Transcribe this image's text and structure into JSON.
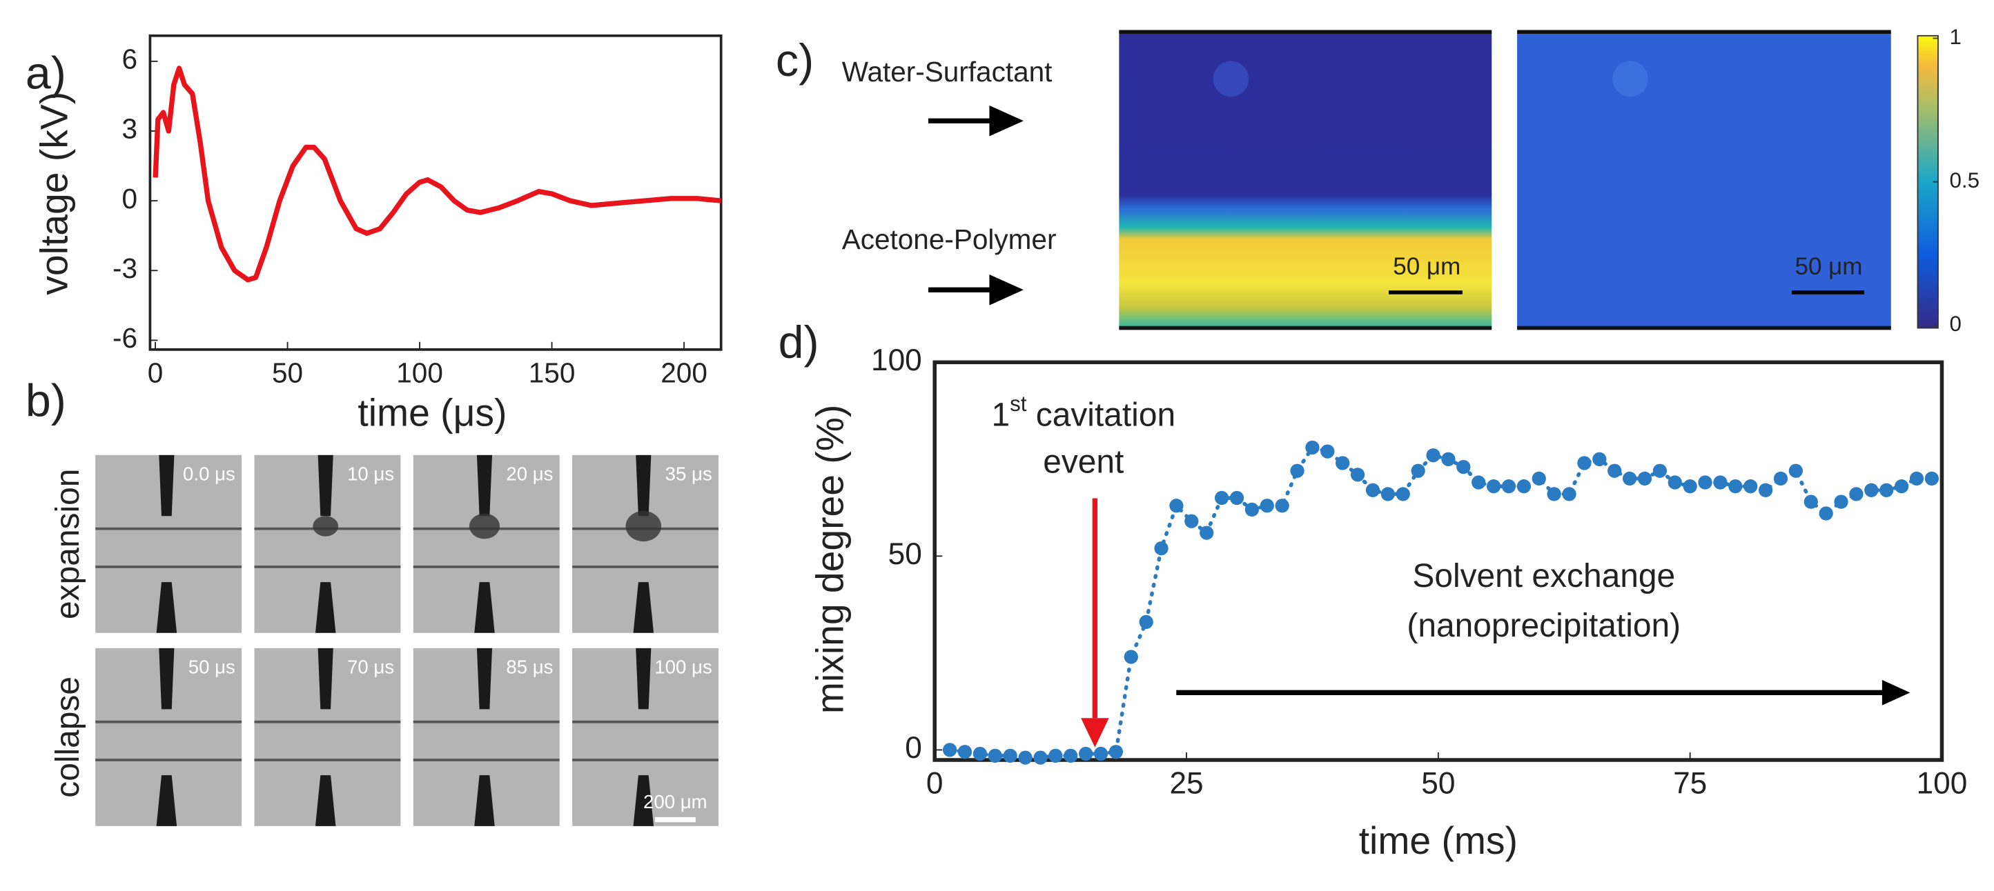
{
  "chart_data": [
    {
      "type": "line",
      "label": "a)",
      "xlabel": "time (μs)",
      "ylabel": "voltage (kV)",
      "color": "#e8141c",
      "x": [
        0,
        1,
        3,
        5,
        7,
        9,
        11,
        14,
        17,
        20,
        25,
        30,
        35,
        38,
        42,
        47,
        52,
        57,
        60,
        64,
        70,
        76,
        80,
        85,
        90,
        95,
        100,
        103,
        108,
        113,
        118,
        123,
        130,
        137,
        145,
        150,
        157,
        165,
        175,
        185,
        195,
        205,
        214
      ],
      "values": [
        1,
        3.5,
        3.8,
        3,
        5,
        5.7,
        5,
        4.6,
        2.5,
        0,
        -2,
        -3,
        -3.4,
        -3.3,
        -2,
        0,
        1.5,
        2.3,
        2.3,
        1.8,
        0,
        -1.2,
        -1.4,
        -1.2,
        -0.5,
        0.3,
        0.8,
        0.9,
        0.6,
        0,
        -0.4,
        -0.5,
        -0.3,
        0,
        0.4,
        0.3,
        0,
        -0.2,
        -0.1,
        0,
        0.1,
        0.1,
        0
      ],
      "xlim": [
        -2,
        214
      ],
      "xticks": [
        0,
        50,
        100,
        150,
        200
      ],
      "ylim": [
        -6.4,
        7.1
      ],
      "yticks": [
        -6,
        -3,
        0,
        3,
        6
      ]
    },
    {
      "type": "scatter",
      "label": "d)",
      "xlabel": "time (ms)",
      "ylabel": "mixing degree (%)",
      "color": "#2a7bc1",
      "x": [
        1.5,
        3,
        4.5,
        6,
        7.5,
        9,
        10.5,
        12,
        13.5,
        15,
        16.5,
        18,
        19.5,
        21,
        22.5,
        24,
        25.5,
        27,
        28.5,
        30,
        31.5,
        33,
        34.5,
        36,
        37.5,
        39,
        40.5,
        42,
        43.5,
        45,
        46.5,
        48,
        49.5,
        51,
        52.5,
        54,
        55.5,
        57,
        58.5,
        60,
        61.5,
        63,
        64.5,
        66,
        67.5,
        69,
        70.5,
        72,
        73.5,
        75,
        76.5,
        78,
        79.5,
        81,
        82.5,
        84,
        85.5,
        87,
        88.5,
        90,
        91.5,
        93,
        94.5,
        96,
        97.5,
        99
      ],
      "values": [
        0,
        -0.5,
        -1,
        -1.5,
        -1.5,
        -2,
        -2,
        -1.5,
        -1.5,
        -1,
        -1,
        -0.5,
        24,
        33,
        52,
        63,
        59,
        56,
        65,
        65,
        62,
        63,
        63,
        72,
        78,
        77,
        74,
        71,
        67,
        66,
        66,
        72,
        76,
        75,
        73,
        69,
        68,
        68,
        68,
        70,
        66,
        66,
        74,
        75,
        72,
        70,
        70,
        72,
        69,
        68,
        69,
        69,
        68,
        68,
        67,
        70,
        72,
        64,
        61,
        64,
        66,
        67,
        67,
        68,
        70,
        70
      ],
      "xlim": [
        0,
        100
      ],
      "xticks": [
        0,
        25,
        50,
        75,
        100
      ],
      "ylim": [
        -2.6,
        100
      ],
      "yticks": [
        0,
        50,
        100
      ],
      "annotation": {
        "ordinal": "1",
        "sup": "st",
        "rest": " cavitation",
        "line2": "event"
      },
      "note": [
        "Solvent exchange",
        "(nanoprecipitation)"
      ]
    }
  ],
  "panel_b": {
    "label": "b)",
    "rows": [
      "expansion",
      "collapse"
    ],
    "frames": [
      "0.0 μs",
      "10 μs",
      "20 μs",
      "35 μs",
      "50 μs",
      "70 μs",
      "85 μs",
      "100 μs"
    ],
    "scalebar": "200 μm"
  },
  "panel_c": {
    "label": "c)",
    "inlets": [
      "Water-Surfactant",
      "Acetone-Polymer"
    ],
    "scalebars": [
      "50 μm",
      "50 μm"
    ],
    "colorbar": {
      "ticks": [
        0,
        0.5,
        1
      ]
    }
  }
}
